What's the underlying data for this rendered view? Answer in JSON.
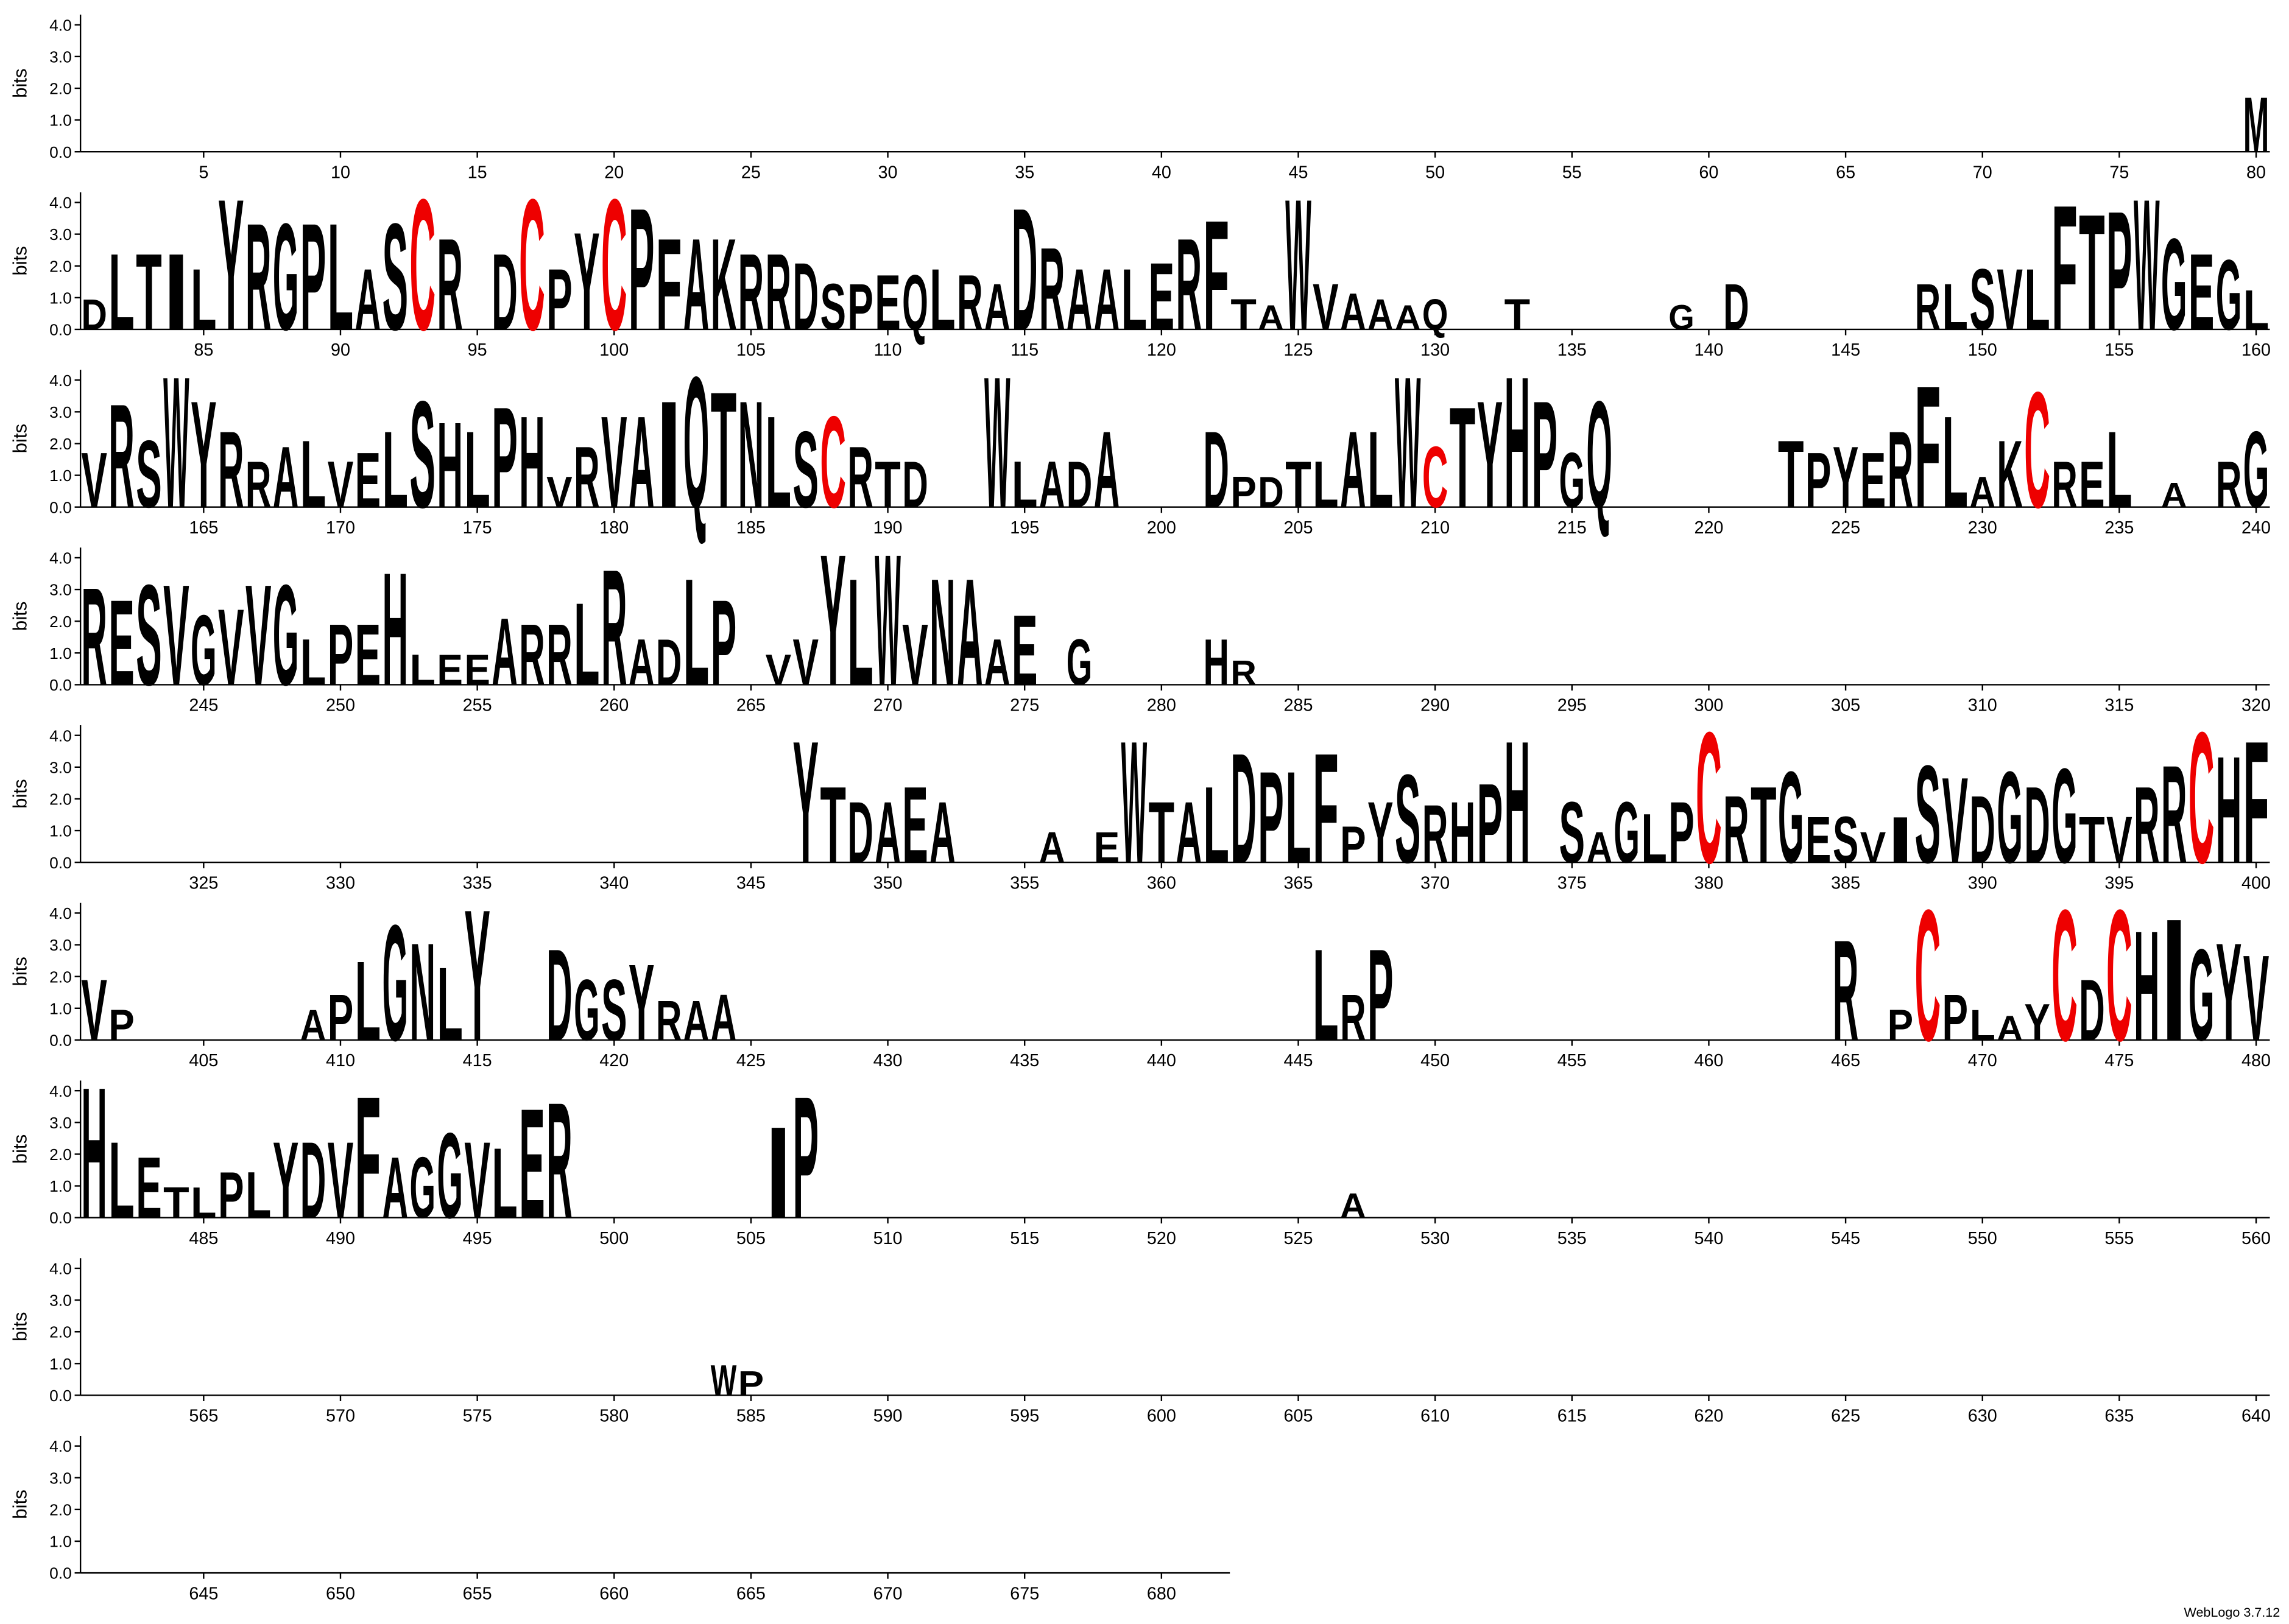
{
  "chart_data": {
    "type": "logo",
    "ylabel": "bits",
    "credit": "WebLogo 3.7.12",
    "ylim": [
      0,
      4.32
    ],
    "yticks": [
      {
        "value": 0,
        "label": "0.0"
      },
      {
        "value": 1,
        "label": "1.0"
      },
      {
        "value": 2,
        "label": "2.0"
      },
      {
        "value": 3,
        "label": "3.0"
      },
      {
        "value": 4,
        "label": "4.0"
      }
    ],
    "rows": [
      [
        1,
        80
      ],
      [
        81,
        160
      ],
      [
        161,
        240
      ],
      [
        241,
        320
      ],
      [
        321,
        400
      ],
      [
        401,
        480
      ],
      [
        481,
        560
      ],
      [
        561,
        640
      ],
      [
        641,
        682
      ]
    ],
    "xticks": [
      5,
      10,
      15,
      20,
      25,
      30,
      35,
      40,
      45,
      50,
      55,
      60,
      65,
      70,
      75,
      80,
      85,
      90,
      95,
      100,
      105,
      110,
      115,
      120,
      125,
      130,
      135,
      140,
      145,
      150,
      155,
      160,
      165,
      170,
      175,
      180,
      185,
      190,
      195,
      200,
      205,
      210,
      215,
      220,
      225,
      230,
      235,
      240,
      245,
      250,
      255,
      260,
      265,
      270,
      275,
      280,
      285,
      290,
      295,
      300,
      305,
      310,
      315,
      320,
      325,
      330,
      335,
      340,
      345,
      350,
      355,
      360,
      365,
      370,
      375,
      380,
      385,
      390,
      395,
      400,
      405,
      410,
      415,
      420,
      425,
      430,
      435,
      440,
      445,
      450,
      455,
      460,
      465,
      470,
      475,
      480,
      485,
      490,
      495,
      500,
      505,
      510,
      515,
      520,
      525,
      530,
      535,
      540,
      545,
      550,
      555,
      560,
      565,
      570,
      575,
      580,
      585,
      590,
      595,
      600,
      605,
      610,
      615,
      620,
      625,
      630,
      635,
      640,
      645,
      650,
      655,
      660,
      665,
      670,
      675,
      680
    ],
    "color": "#000000",
    "letter_colors": {
      "C": "#ee0000"
    },
    "stacks": {
      "x": [
        80,
        81,
        82,
        83,
        84,
        85,
        86,
        87,
        88,
        89,
        90,
        91,
        92,
        93,
        94,
        96,
        97,
        98,
        99,
        100,
        101,
        102,
        103,
        104,
        105,
        106,
        107,
        108,
        109,
        110,
        111,
        112,
        113,
        114,
        115,
        116,
        117,
        118,
        119,
        120,
        121,
        122,
        123,
        124,
        125,
        126,
        127,
        128,
        129,
        130,
        133,
        139,
        141,
        148,
        149,
        150,
        151,
        152,
        153,
        154,
        155,
        156,
        157,
        158,
        159,
        160,
        161,
        162,
        163,
        164,
        165,
        166,
        167,
        168,
        169,
        170,
        171,
        172,
        173,
        174,
        175,
        176,
        177,
        178,
        179,
        180,
        181,
        182,
        183,
        184,
        185,
        186,
        187,
        188,
        189,
        190,
        191,
        194,
        195,
        196,
        197,
        198,
        202,
        203,
        204,
        205,
        206,
        207,
        208,
        209,
        210,
        211,
        212,
        213,
        214,
        215,
        216,
        223,
        224,
        225,
        226,
        227,
        228,
        229,
        230,
        231,
        232,
        233,
        234,
        235,
        237,
        239,
        240,
        241,
        242,
        243,
        244,
        245,
        246,
        247,
        248,
        249,
        250,
        251,
        252,
        253,
        254,
        255,
        256,
        257,
        258,
        259,
        260,
        261,
        262,
        263,
        264,
        266,
        267,
        268,
        269,
        270,
        271,
        272,
        273,
        274,
        275,
        277,
        282,
        283,
        347,
        348,
        349,
        350,
        351,
        352,
        356,
        358,
        359,
        360,
        361,
        362,
        363,
        364,
        365,
        366,
        367,
        368,
        369,
        370,
        371,
        372,
        373,
        375,
        376,
        377,
        378,
        379,
        380,
        381,
        382,
        383,
        384,
        385,
        386,
        387,
        388,
        389,
        390,
        391,
        392,
        393,
        394,
        395,
        396,
        397,
        398,
        399,
        400,
        401,
        402,
        409,
        410,
        411,
        412,
        413,
        414,
        415,
        418,
        419,
        420,
        421,
        422,
        423,
        424,
        446,
        447,
        448,
        465,
        467,
        468,
        469,
        470,
        471,
        472,
        473,
        474,
        475,
        476,
        477,
        478,
        479,
        480,
        481,
        482,
        483,
        484,
        485,
        486,
        487,
        488,
        489,
        490,
        491,
        492,
        493,
        494,
        495,
        496,
        497,
        498,
        506,
        507,
        527,
        584,
        585
      ],
      "letters": [
        "M",
        "D",
        "L",
        "T",
        "I",
        "L",
        "Y",
        "R",
        "G",
        "P",
        "L",
        "A",
        "S",
        "C",
        "R",
        "D",
        "C",
        "P",
        "Y",
        "C",
        "P",
        "F",
        "A",
        "K",
        "R",
        "R",
        "D",
        "S",
        "P",
        "E",
        "Q",
        "L",
        "R",
        "A",
        "D",
        "R",
        "A",
        "A",
        "L",
        "E",
        "R",
        "F",
        "T",
        "A",
        "W",
        "V",
        "A",
        "A",
        "A",
        "Q",
        "T",
        "G",
        "D",
        "R",
        "L",
        "S",
        "V",
        "L",
        "F",
        "T",
        "P",
        "W",
        "G",
        "E",
        "G",
        "L",
        "V",
        "R",
        "S",
        "W",
        "Y",
        "R",
        "R",
        "A",
        "L",
        "V",
        "E",
        "L",
        "S",
        "H",
        "L",
        "P",
        "H",
        "V",
        "R",
        "V",
        "A",
        "I",
        "Q",
        "T",
        "N",
        "L",
        "S",
        "C",
        "R",
        "T",
        "D",
        "W",
        "L",
        "A",
        "D",
        "A",
        "D",
        "P",
        "D",
        "T",
        "L",
        "A",
        "L",
        "W",
        "C",
        "T",
        "Y",
        "H",
        "P",
        "G",
        "Q",
        "T",
        "P",
        "Y",
        "E",
        "R",
        "F",
        "L",
        "A",
        "K",
        "C",
        "R",
        "E",
        "L",
        "A",
        "R",
        "G",
        "R",
        "E",
        "S",
        "V",
        "G",
        "V",
        "V",
        "G",
        "L",
        "P",
        "E",
        "H",
        "L",
        "E",
        "E",
        "A",
        "R",
        "R",
        "L",
        "R",
        "A",
        "D",
        "L",
        "P",
        "V",
        "V",
        "Y",
        "L",
        "W",
        "V",
        "N",
        "A",
        "A",
        "E",
        "G",
        "H",
        "R",
        "Y",
        "T",
        "D",
        "A",
        "E",
        "A",
        "A",
        "E",
        "W",
        "T",
        "A",
        "L",
        "D",
        "P",
        "L",
        "F",
        "P",
        "Y",
        "S",
        "R",
        "H",
        "P",
        "H",
        "S",
        "A",
        "G",
        "L",
        "P",
        "C",
        "R",
        "T",
        "G",
        "E",
        "S",
        "V",
        "I",
        "S",
        "V",
        "D",
        "G",
        "D",
        "G",
        "T",
        "V",
        "R",
        "R",
        "C",
        "H",
        "F",
        "V",
        "P",
        "A",
        "P",
        "L",
        "G",
        "N",
        "L",
        "Y",
        "D",
        "G",
        "S",
        "Y",
        "R",
        "A",
        "A",
        "L",
        "R",
        "P",
        "R",
        "P",
        "C",
        "P",
        "L",
        "A",
        "Y",
        "C",
        "D",
        "C",
        "H",
        "I",
        "G",
        "Y",
        "V",
        "H",
        "L",
        "E",
        "T",
        "L",
        "P",
        "L",
        "Y",
        "D",
        "V",
        "F",
        "A",
        "G",
        "G",
        "V",
        "L",
        "E",
        "R",
        "I",
        "P",
        "A",
        "W",
        "P"
      ],
      "bits": [
        1.8,
        1.0,
        2.5,
        2.5,
        2.5,
        2.0,
        4.3,
        3.5,
        3.5,
        3.5,
        3.5,
        2.0,
        3.5,
        4.3,
        3.0,
        2.5,
        4.3,
        2.0,
        3.2,
        4.3,
        4.0,
        3.0,
        3.0,
        3.0,
        2.5,
        2.5,
        2.2,
        1.5,
        1.5,
        1.8,
        1.8,
        2.0,
        1.8,
        1.5,
        4.0,
        2.7,
        2.0,
        2.0,
        2.0,
        2.2,
        3.0,
        3.6,
        1.0,
        0.8,
        4.3,
        1.5,
        1.2,
        1.0,
        0.8,
        1.0,
        1.0,
        0.8,
        1.5,
        1.5,
        1.5,
        2.0,
        2.0,
        2.0,
        4.1,
        3.8,
        3.9,
        4.3,
        3.0,
        2.5,
        2.3,
        1.3,
        1.8,
        3.4,
        2.2,
        4.3,
        3.5,
        2.5,
        1.5,
        2.0,
        2.2,
        1.5,
        1.8,
        2.5,
        3.5,
        2.8,
        2.5,
        3.3,
        3.0,
        1.0,
        2.0,
        3.0,
        3.0,
        3.5,
        4.3,
        3.8,
        3.5,
        3.0,
        2.5,
        3.0,
        2.0,
        1.5,
        1.5,
        4.3,
        1.5,
        1.5,
        1.5,
        2.5,
        2.5,
        1.0,
        1.0,
        1.5,
        1.5,
        2.5,
        2.5,
        4.3,
        2.0,
        3.3,
        3.5,
        4.3,
        3.5,
        1.8,
        3.5,
        2.2,
        1.8,
        2.0,
        1.8,
        2.5,
        4.0,
        3.0,
        1.0,
        2.2,
        3.8,
        1.5,
        1.5,
        2.5,
        0.8,
        1.5,
        2.5,
        3.2,
        2.8,
        3.3,
        3.3,
        2.3,
        2.5,
        3.3,
        3.3,
        1.5,
        2.0,
        2.0,
        3.7,
        1.0,
        1.0,
        1.0,
        2.2,
        2.0,
        2.0,
        2.7,
        3.8,
        1.5,
        1.5,
        3.5,
        2.8,
        1.0,
        1.5,
        4.3,
        3.5,
        4.3,
        2.0,
        3.5,
        3.5,
        1.5,
        2.3,
        1.5,
        1.5,
        0.8,
        4.0,
        2.5,
        2.0,
        2.0,
        2.5,
        2.0,
        1.0,
        1.0,
        4.0,
        2.0,
        2.0,
        2.5,
        3.6,
        3.0,
        3.0,
        3.6,
        1.2,
        2.0,
        2.9,
        1.9,
        2.0,
        2.6,
        4.0,
        2.0,
        1.0,
        2.0,
        1.6,
        2.0,
        4.3,
        2.2,
        2.5,
        3.0,
        1.5,
        1.5,
        1.0,
        1.5,
        3.2,
        2.8,
        2.2,
        3.0,
        2.5,
        3.1,
        1.5,
        1.5,
        2.5,
        3.2,
        4.3,
        3.5,
        4.0,
        2.0,
        1.0,
        1.0,
        1.5,
        2.6,
        3.8,
        3.2,
        2.4,
        4.3,
        3.0,
        2.0,
        2.0,
        2.5,
        1.3,
        1.3,
        1.5,
        3.0,
        1.5,
        3.0,
        3.3,
        1.0,
        4.3,
        1.5,
        1.0,
        0.8,
        1.2,
        4.3,
        2.0,
        4.3,
        3.6,
        4.0,
        3.0,
        3.2,
        2.8,
        4.3,
        2.5,
        2.0,
        1.0,
        1.0,
        1.5,
        1.5,
        2.5,
        2.5,
        2.5,
        4.0,
        2.0,
        2.0,
        2.8,
        2.5,
        2.3,
        3.6,
        3.8,
        3.0,
        4.0,
        0.8,
        1.0,
        0.8
      ]
    }
  }
}
